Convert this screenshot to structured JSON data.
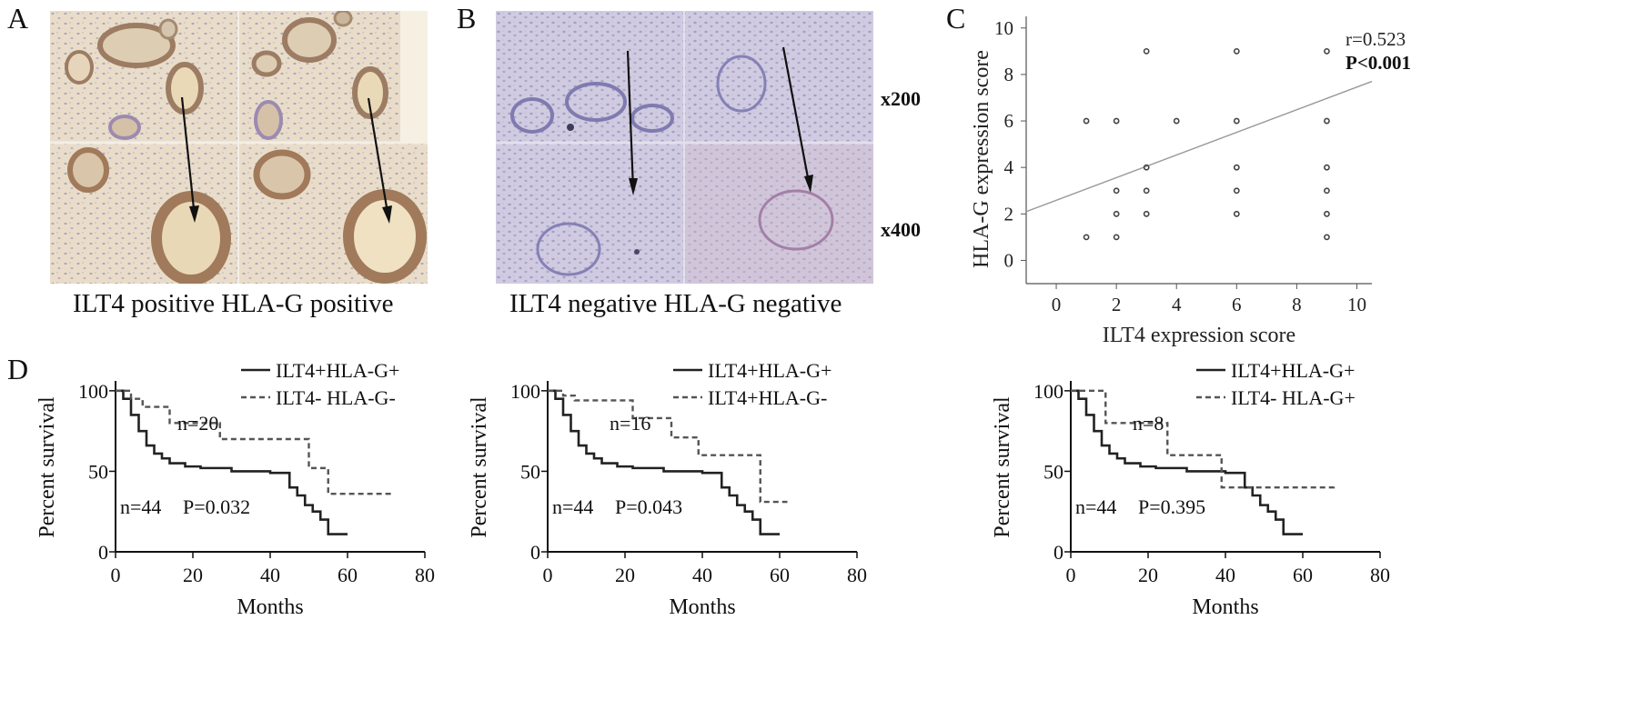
{
  "panels": {
    "A": {
      "letter": "A",
      "caption": "ILT4 positive HLA-G positive"
    },
    "B": {
      "letter": "B",
      "caption": "ILT4 negative HLA-G negative",
      "mag_top": "x200",
      "mag_bottom": "x400"
    },
    "C": {
      "letter": "C"
    },
    "D": {
      "letter": "D"
    }
  },
  "colors": {
    "tissue_bg_a": "#e9dccb",
    "tissue_bg_b": "#cdc9df",
    "gland_brown": "#a6805e",
    "stain_blue": "#8f8fbf"
  },
  "chart_data": [
    {
      "type": "scatter",
      "title": "",
      "xlabel": "ILT4 expression score",
      "ylabel": "HLA-G expression score",
      "xlim": [
        -1,
        10.5
      ],
      "ylim": [
        -1,
        10.5
      ],
      "xticks": [
        0,
        2,
        4,
        6,
        8,
        10
      ],
      "yticks": [
        0,
        2,
        4,
        6,
        8,
        10
      ],
      "points": [
        [
          1,
          1
        ],
        [
          1,
          6
        ],
        [
          2,
          1
        ],
        [
          2,
          2
        ],
        [
          2,
          3
        ],
        [
          2,
          6
        ],
        [
          3,
          2
        ],
        [
          3,
          3
        ],
        [
          3,
          4
        ],
        [
          3,
          9
        ],
        [
          4,
          6
        ],
        [
          6,
          2
        ],
        [
          6,
          3
        ],
        [
          6,
          4
        ],
        [
          6,
          6
        ],
        [
          6,
          9
        ],
        [
          9,
          1
        ],
        [
          9,
          2
        ],
        [
          9,
          3
        ],
        [
          9,
          4
        ],
        [
          9,
          6
        ],
        [
          9,
          9
        ]
      ],
      "regression": {
        "x0": -1,
        "y0": 2.1,
        "x1": 10.5,
        "y1": 7.7
      },
      "annotations": {
        "r": "r=0.523",
        "p": "P<0.001"
      }
    },
    {
      "type": "line",
      "xlabel": "Months",
      "ylabel": "Percent survival",
      "xlim": [
        0,
        80
      ],
      "ylim": [
        0,
        105
      ],
      "xticks": [
        0,
        20,
        40,
        60,
        80
      ],
      "yticks": [
        0,
        50,
        100
      ],
      "series": [
        {
          "name": "ILT4+HLA-G+",
          "style": "solid",
          "x": [
            0,
            2,
            4,
            6,
            8,
            10,
            12,
            14,
            18,
            22,
            30,
            36,
            40,
            45,
            47,
            49,
            51,
            53,
            55,
            60
          ],
          "y": [
            100,
            95,
            85,
            75,
            66,
            61,
            58,
            55,
            53,
            52,
            50,
            50,
            49,
            40,
            35,
            29,
            25,
            20,
            11,
            11
          ]
        },
        {
          "name": "ILT4- HLA-G-",
          "style": "dashed",
          "x": [
            0,
            4,
            7,
            14,
            27,
            50,
            55,
            72
          ],
          "y": [
            100,
            95,
            90,
            80,
            70,
            52,
            36,
            36
          ]
        }
      ],
      "annotations": {
        "n_top": "n=20",
        "n_bottom": "n=44",
        "p": "P=0.032"
      }
    },
    {
      "type": "line",
      "xlabel": "Months",
      "ylabel": "Percent survival",
      "xlim": [
        0,
        80
      ],
      "ylim": [
        0,
        105
      ],
      "xticks": [
        0,
        20,
        40,
        60,
        80
      ],
      "yticks": [
        0,
        50,
        100
      ],
      "series": [
        {
          "name": "ILT4+HLA-G+",
          "style": "solid",
          "x": [
            0,
            2,
            4,
            6,
            8,
            10,
            12,
            14,
            18,
            22,
            30,
            36,
            40,
            45,
            47,
            49,
            51,
            53,
            55,
            60
          ],
          "y": [
            100,
            95,
            85,
            75,
            66,
            61,
            58,
            55,
            53,
            52,
            50,
            50,
            49,
            40,
            35,
            29,
            25,
            20,
            11,
            11
          ]
        },
        {
          "name": "ILT4+HLA-G-",
          "style": "dashed",
          "x": [
            0,
            4,
            7,
            22,
            32,
            39,
            55,
            62
          ],
          "y": [
            100,
            97,
            94,
            83,
            71,
            60,
            31,
            31
          ]
        }
      ],
      "annotations": {
        "n_top": "n=16",
        "n_bottom": "n=44",
        "p": "P=0.043"
      }
    },
    {
      "type": "line",
      "xlabel": "Months",
      "ylabel": "Percent survival",
      "xlim": [
        0,
        80
      ],
      "ylim": [
        0,
        105
      ],
      "xticks": [
        0,
        20,
        40,
        60,
        80
      ],
      "yticks": [
        0,
        50,
        100
      ],
      "series": [
        {
          "name": "ILT4+HLA-G+",
          "style": "solid",
          "x": [
            0,
            2,
            4,
            6,
            8,
            10,
            12,
            14,
            18,
            22,
            30,
            36,
            40,
            45,
            47,
            49,
            51,
            53,
            55,
            60
          ],
          "y": [
            100,
            95,
            85,
            75,
            66,
            61,
            58,
            55,
            53,
            52,
            50,
            50,
            49,
            40,
            35,
            29,
            25,
            20,
            11,
            11
          ]
        },
        {
          "name": "ILT4- HLA-G+",
          "style": "dashed",
          "x": [
            0,
            6,
            9,
            25,
            39,
            68
          ],
          "y": [
            100,
            100,
            80,
            60,
            40,
            42
          ]
        }
      ],
      "annotations": {
        "n_top": "n=8",
        "n_bottom": "n=44",
        "p": "P=0.395"
      }
    }
  ]
}
